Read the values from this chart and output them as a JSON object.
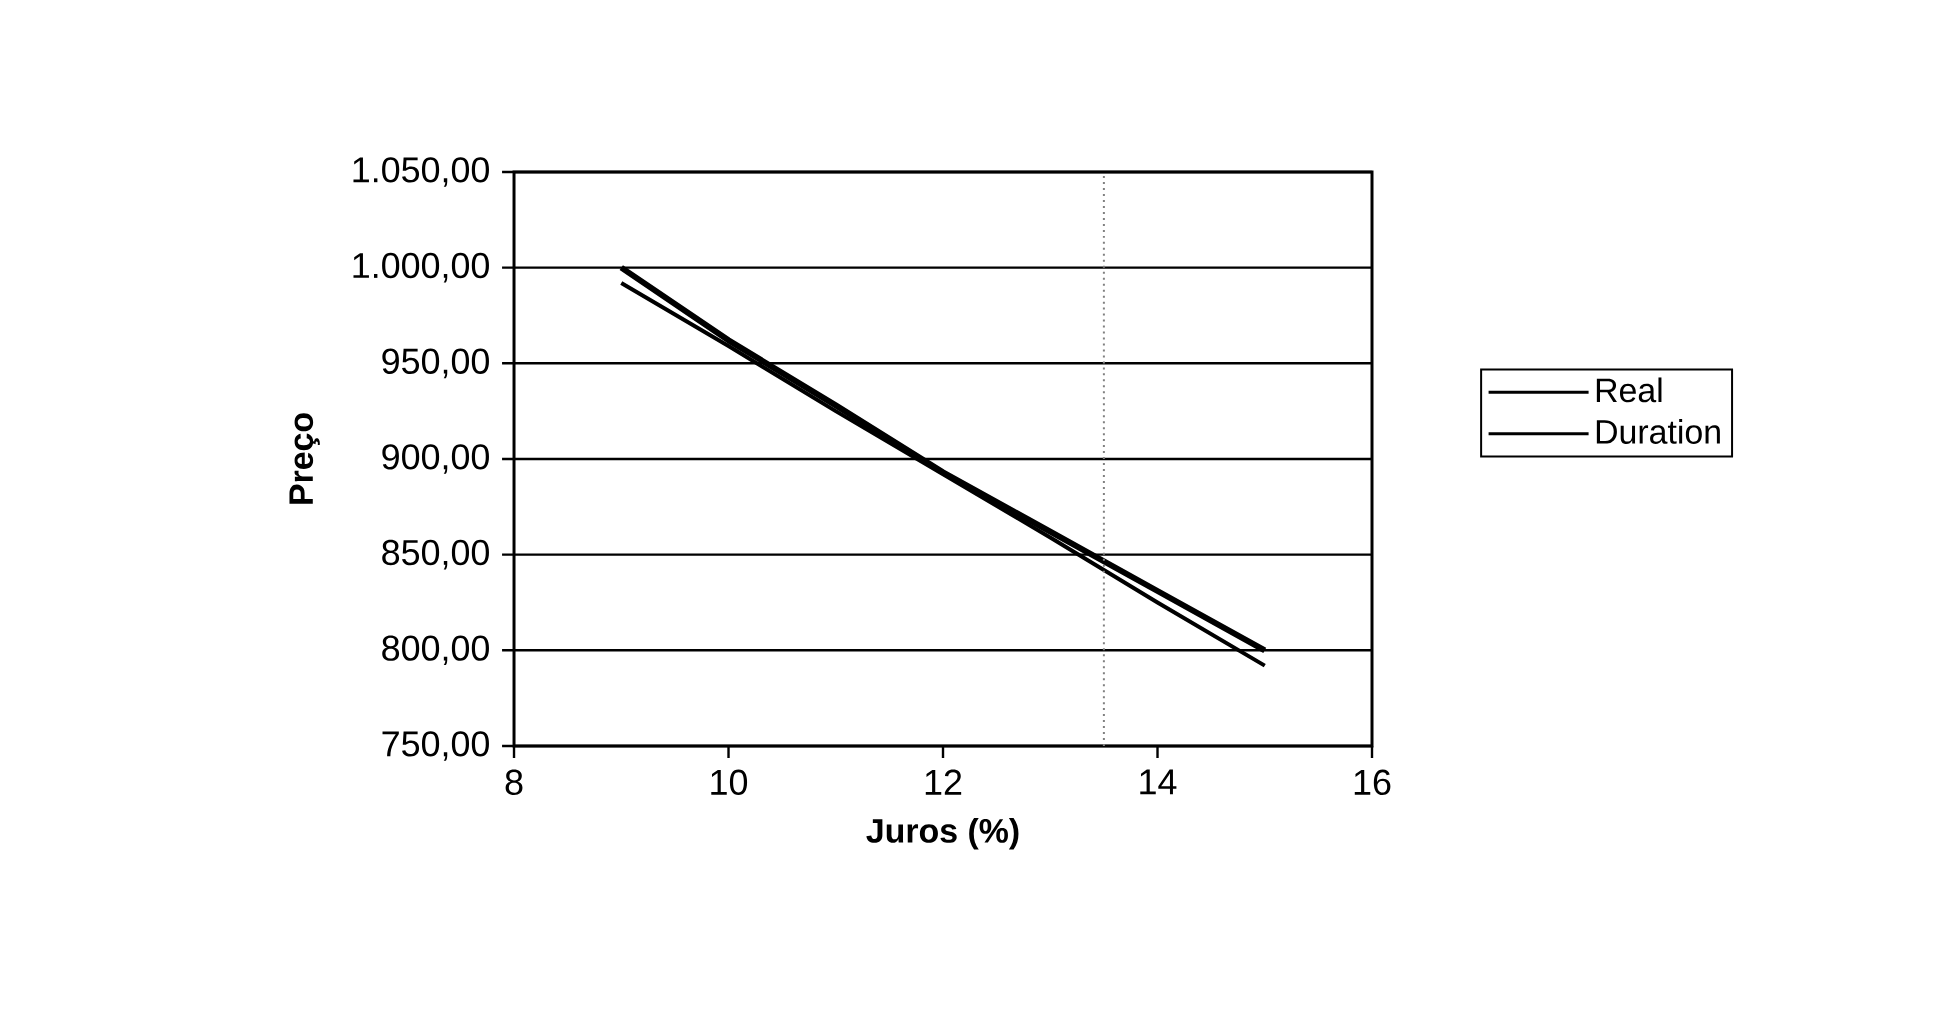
{
  "chart_data": {
    "type": "line",
    "xlabel": "Juros (%)",
    "ylabel": "Preço",
    "x": [
      9,
      10,
      11,
      12,
      13,
      14,
      15
    ],
    "series": [
      {
        "name": "Real",
        "color": "#000000",
        "values": [
          1000,
          962,
          928,
          893,
          862,
          831,
          800
        ]
      },
      {
        "name": "Duration",
        "color": "#000000",
        "values": [
          992,
          959,
          925,
          892,
          859,
          825,
          792
        ]
      }
    ],
    "xlim": [
      8,
      16
    ],
    "xticks": [
      8,
      10,
      12,
      14,
      16
    ],
    "ylim": [
      750,
      1050
    ],
    "yticks": [
      {
        "value": 750,
        "label": "750,00"
      },
      {
        "value": 800,
        "label": "800,00"
      },
      {
        "value": 850,
        "label": "850,00"
      },
      {
        "value": 900,
        "label": "900,00"
      },
      {
        "value": 950,
        "label": "950,00"
      },
      {
        "value": 1000,
        "label": "1.000,00"
      },
      {
        "value": 1050,
        "label": "1.050,00"
      }
    ],
    "grid": "y",
    "legend": "right",
    "marker": "none",
    "line_style": "solid",
    "ref_lines": [
      {
        "axis": "x",
        "value": 13.5,
        "color": "#808080",
        "line_style": "dotted"
      }
    ]
  }
}
